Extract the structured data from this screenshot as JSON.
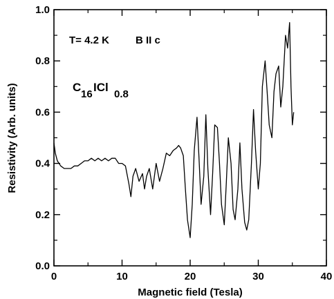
{
  "chart_data": {
    "type": "line",
    "title": "",
    "xlabel": "Magnetic field (Tesla)",
    "ylabel": "Resistivity (Arb. units)",
    "xlim": [
      0,
      40
    ],
    "ylim": [
      0.0,
      1.0
    ],
    "x_ticks": [
      0,
      10,
      20,
      30,
      40
    ],
    "y_ticks": [
      0.0,
      0.2,
      0.4,
      0.6,
      0.8,
      1.0
    ],
    "x_tick_labels": [
      "0",
      "10",
      "20",
      "30",
      "40"
    ],
    "y_tick_labels": [
      "0.0",
      "0.2",
      "0.4",
      "0.6",
      "0.8",
      "1.0"
    ],
    "grid": false,
    "legend": "none",
    "annotations": {
      "temperature": "T= 4.2 K",
      "field_direction": "B II c",
      "compound_c": "C",
      "compound_c_sub": "16",
      "compound_icl": "ICl",
      "compound_icl_sub": "0.8"
    },
    "series": [
      {
        "color": "#000000",
        "x": [
          0.0,
          0.2,
          0.5,
          1.0,
          1.5,
          2.0,
          2.5,
          3.0,
          3.5,
          4.0,
          4.5,
          5.0,
          5.5,
          6.0,
          6.5,
          7.0,
          7.5,
          8.0,
          8.5,
          9.0,
          9.5,
          10.0,
          10.5,
          11.0,
          11.3,
          11.6,
          12.0,
          12.5,
          13.0,
          13.3,
          13.6,
          14.0,
          14.5,
          15.0,
          15.5,
          16.0,
          16.5,
          17.0,
          17.5,
          18.0,
          18.3,
          18.6,
          19.0,
          19.3,
          19.6,
          20.0,
          20.3,
          20.6,
          21.0,
          21.3,
          21.6,
          22.0,
          22.3,
          22.6,
          23.0,
          23.3,
          23.6,
          24.0,
          24.3,
          24.6,
          25.0,
          25.3,
          25.6,
          26.0,
          26.3,
          26.6,
          27.0,
          27.3,
          27.6,
          28.0,
          28.3,
          28.6,
          29.0,
          29.3,
          29.6,
          30.0,
          30.3,
          30.6,
          31.0,
          31.3,
          31.6,
          32.0,
          32.3,
          32.6,
          33.0,
          33.3,
          33.6,
          34.0,
          34.3,
          34.6,
          34.8,
          35.0,
          35.2
        ],
        "y": [
          0.48,
          0.44,
          0.41,
          0.39,
          0.38,
          0.38,
          0.38,
          0.39,
          0.39,
          0.4,
          0.41,
          0.41,
          0.42,
          0.41,
          0.42,
          0.41,
          0.42,
          0.41,
          0.42,
          0.42,
          0.4,
          0.4,
          0.39,
          0.32,
          0.27,
          0.35,
          0.38,
          0.33,
          0.36,
          0.3,
          0.35,
          0.38,
          0.3,
          0.4,
          0.33,
          0.38,
          0.44,
          0.43,
          0.45,
          0.46,
          0.47,
          0.46,
          0.43,
          0.3,
          0.18,
          0.11,
          0.24,
          0.45,
          0.58,
          0.42,
          0.24,
          0.35,
          0.59,
          0.38,
          0.2,
          0.36,
          0.55,
          0.54,
          0.4,
          0.24,
          0.16,
          0.32,
          0.5,
          0.4,
          0.22,
          0.18,
          0.3,
          0.48,
          0.3,
          0.17,
          0.14,
          0.18,
          0.4,
          0.61,
          0.45,
          0.3,
          0.4,
          0.7,
          0.8,
          0.68,
          0.55,
          0.5,
          0.68,
          0.75,
          0.78,
          0.62,
          0.7,
          0.9,
          0.85,
          0.95,
          0.7,
          0.55,
          0.6
        ]
      }
    ]
  }
}
